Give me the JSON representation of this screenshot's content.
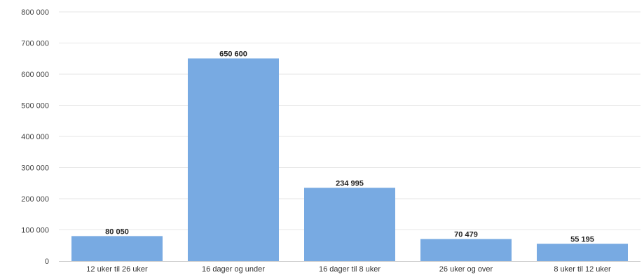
{
  "chart_data": {
    "type": "bar",
    "categories": [
      "12 uker til 26 uker",
      "16 dager og under",
      "16 dager til 8 uker",
      "26 uker og over",
      "8 uker til 12 uker"
    ],
    "values": [
      80050,
      650600,
      234995,
      70479,
      55195
    ],
    "data_labels": [
      "80 050",
      "650 600",
      "234 995",
      "70 479",
      "55 195"
    ],
    "ylim": [
      0,
      800000
    ],
    "yticks": [
      0,
      100000,
      200000,
      300000,
      400000,
      500000,
      600000,
      700000,
      800000
    ],
    "ytick_labels": [
      "0",
      "100 000",
      "200 000",
      "300 000",
      "400 000",
      "500 000",
      "600 000",
      "700 000",
      "800 000"
    ],
    "grid": true,
    "legend": "none",
    "bar_color": "#78aae2"
  }
}
